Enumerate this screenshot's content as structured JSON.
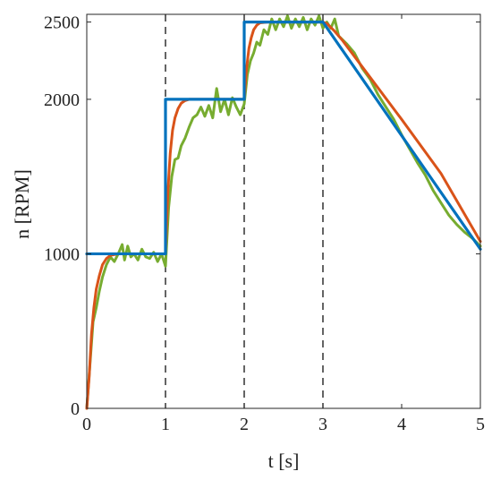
{
  "chart_data": {
    "type": "line",
    "title": "",
    "xlabel": "t [s]",
    "ylabel": "n [RPM]",
    "xlim": [
      0,
      5
    ],
    "ylim": [
      0,
      2550
    ],
    "x_ticks": [
      0,
      1,
      2,
      3,
      4,
      5
    ],
    "x_tick_labels": [
      "0",
      "1",
      "2",
      "3",
      "4",
      "5"
    ],
    "y_ticks": [
      0,
      1000,
      2000,
      2500
    ],
    "y_tick_labels": [
      "0",
      "1000",
      "2000",
      "2500"
    ],
    "grid": false,
    "legend": "none",
    "vertical_dashed_lines_x": [
      1,
      2,
      3
    ],
    "series": [
      {
        "color": "#77ac30",
        "points": [
          [
            0.0,
            0
          ],
          [
            0.05,
            350
          ],
          [
            0.08,
            560
          ],
          [
            0.12,
            650
          ],
          [
            0.16,
            760
          ],
          [
            0.2,
            850
          ],
          [
            0.25,
            930
          ],
          [
            0.3,
            980
          ],
          [
            0.35,
            950
          ],
          [
            0.4,
            1000
          ],
          [
            0.45,
            1060
          ],
          [
            0.48,
            960
          ],
          [
            0.52,
            1050
          ],
          [
            0.56,
            980
          ],
          [
            0.6,
            1000
          ],
          [
            0.65,
            960
          ],
          [
            0.7,
            1030
          ],
          [
            0.75,
            980
          ],
          [
            0.8,
            970
          ],
          [
            0.85,
            1010
          ],
          [
            0.9,
            950
          ],
          [
            0.95,
            1000
          ],
          [
            1.0,
            920
          ],
          [
            1.04,
            1300
          ],
          [
            1.08,
            1500
          ],
          [
            1.12,
            1610
          ],
          [
            1.16,
            1620
          ],
          [
            1.2,
            1700
          ],
          [
            1.25,
            1750
          ],
          [
            1.3,
            1820
          ],
          [
            1.35,
            1880
          ],
          [
            1.4,
            1900
          ],
          [
            1.45,
            1950
          ],
          [
            1.5,
            1890
          ],
          [
            1.55,
            1960
          ],
          [
            1.6,
            1880
          ],
          [
            1.65,
            2070
          ],
          [
            1.7,
            1920
          ],
          [
            1.75,
            2000
          ],
          [
            1.8,
            1900
          ],
          [
            1.85,
            2010
          ],
          [
            1.9,
            1950
          ],
          [
            1.95,
            1900
          ],
          [
            2.0,
            1970
          ],
          [
            2.04,
            2160
          ],
          [
            2.08,
            2250
          ],
          [
            2.12,
            2300
          ],
          [
            2.16,
            2370
          ],
          [
            2.2,
            2350
          ],
          [
            2.25,
            2450
          ],
          [
            2.3,
            2420
          ],
          [
            2.35,
            2520
          ],
          [
            2.4,
            2450
          ],
          [
            2.45,
            2520
          ],
          [
            2.5,
            2470
          ],
          [
            2.55,
            2540
          ],
          [
            2.6,
            2460
          ],
          [
            2.65,
            2520
          ],
          [
            2.7,
            2470
          ],
          [
            2.75,
            2530
          ],
          [
            2.8,
            2450
          ],
          [
            2.85,
            2520
          ],
          [
            2.9,
            2480
          ],
          [
            2.95,
            2540
          ],
          [
            3.0,
            2460
          ],
          [
            3.05,
            2500
          ],
          [
            3.1,
            2460
          ],
          [
            3.15,
            2520
          ],
          [
            3.2,
            2410
          ],
          [
            3.3,
            2360
          ],
          [
            3.4,
            2300
          ],
          [
            3.5,
            2200
          ],
          [
            3.6,
            2130
          ],
          [
            3.7,
            2030
          ],
          [
            3.8,
            1950
          ],
          [
            3.9,
            1870
          ],
          [
            4.0,
            1770
          ],
          [
            4.1,
            1680
          ],
          [
            4.2,
            1590
          ],
          [
            4.3,
            1510
          ],
          [
            4.4,
            1410
          ],
          [
            4.5,
            1330
          ],
          [
            4.6,
            1250
          ],
          [
            4.7,
            1190
          ],
          [
            4.8,
            1140
          ],
          [
            4.9,
            1100
          ],
          [
            5.0,
            1050
          ]
        ]
      },
      {
        "color": "#d95319",
        "points": [
          [
            0.0,
            0
          ],
          [
            0.03,
            200
          ],
          [
            0.06,
            480
          ],
          [
            0.09,
            650
          ],
          [
            0.12,
            770
          ],
          [
            0.16,
            860
          ],
          [
            0.2,
            930
          ],
          [
            0.25,
            970
          ],
          [
            0.3,
            990
          ],
          [
            0.4,
            1000
          ],
          [
            1.0,
            1000
          ],
          [
            1.03,
            1400
          ],
          [
            1.06,
            1650
          ],
          [
            1.09,
            1800
          ],
          [
            1.12,
            1880
          ],
          [
            1.16,
            1940
          ],
          [
            1.2,
            1975
          ],
          [
            1.25,
            1992
          ],
          [
            1.3,
            2000
          ],
          [
            2.0,
            2000
          ],
          [
            2.03,
            2200
          ],
          [
            2.06,
            2330
          ],
          [
            2.09,
            2400
          ],
          [
            2.12,
            2450
          ],
          [
            2.16,
            2480
          ],
          [
            2.2,
            2495
          ],
          [
            2.3,
            2500
          ],
          [
            3.0,
            2500
          ],
          [
            3.05,
            2490
          ],
          [
            3.15,
            2440
          ],
          [
            3.25,
            2380
          ],
          [
            3.5,
            2210
          ],
          [
            4.0,
            1870
          ],
          [
            4.5,
            1520
          ],
          [
            5.0,
            1080
          ]
        ]
      },
      {
        "color": "#0072bd",
        "points": [
          [
            0.0,
            1000
          ],
          [
            1.0,
            1000
          ],
          [
            1.0,
            2000
          ],
          [
            2.0,
            2000
          ],
          [
            2.0,
            2500
          ],
          [
            3.0,
            2500
          ],
          [
            5.0,
            1030
          ]
        ]
      }
    ]
  }
}
